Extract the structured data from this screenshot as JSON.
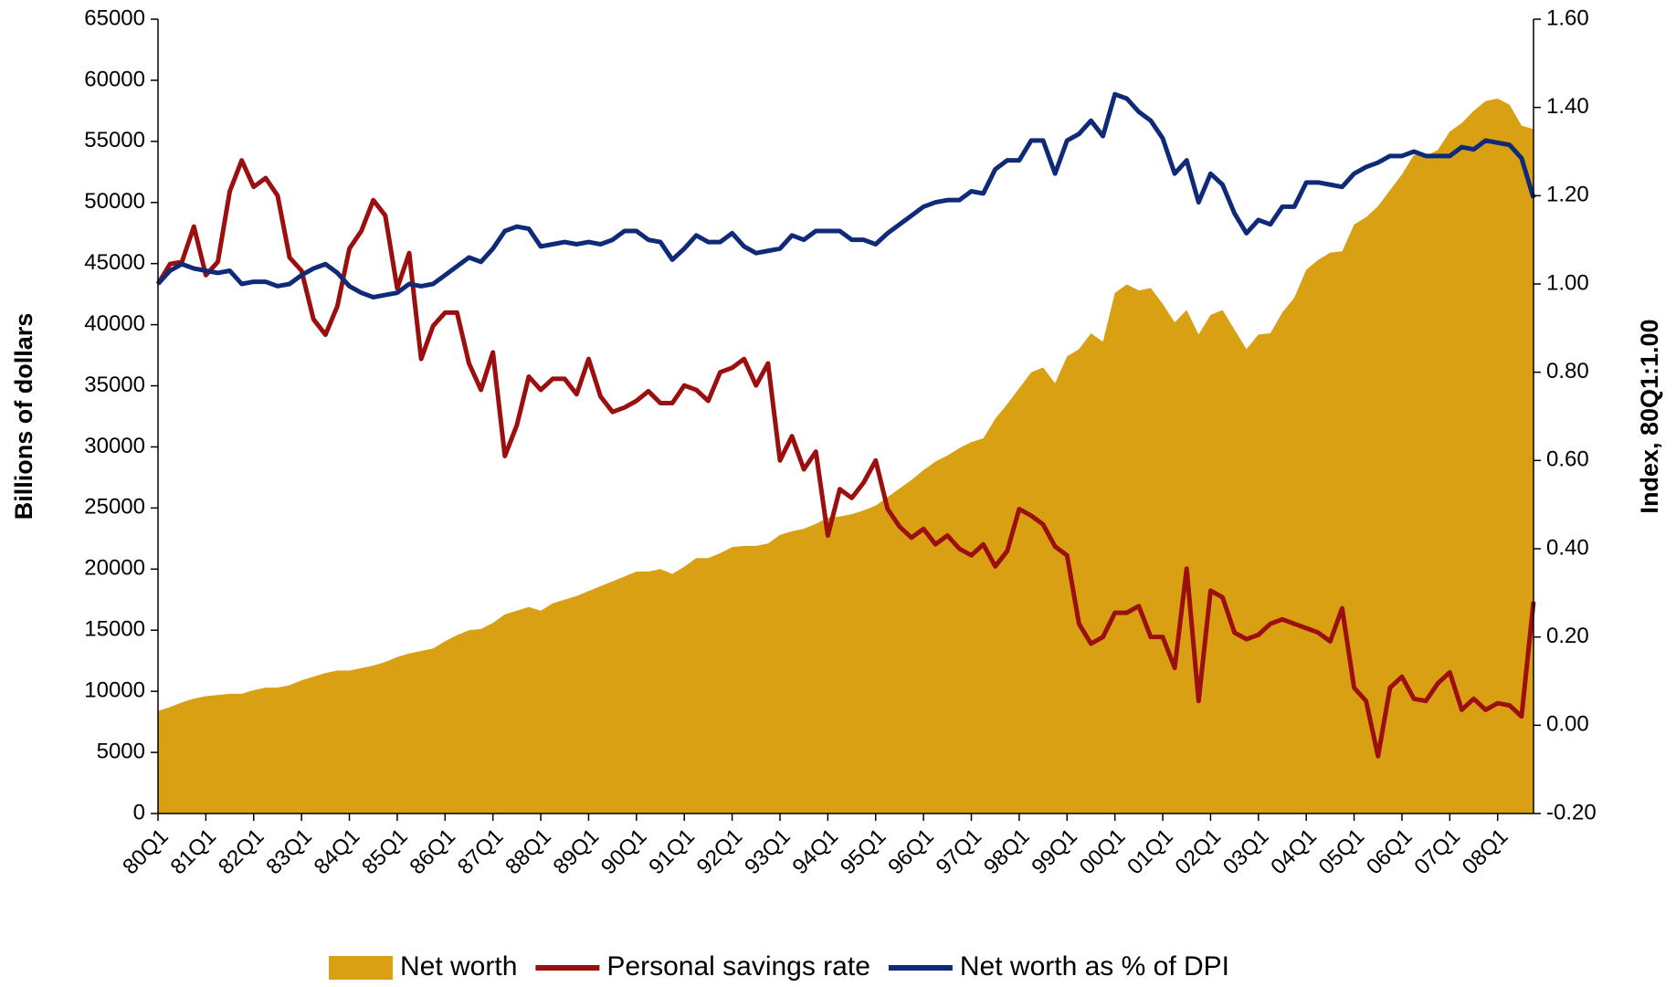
{
  "chart_data": {
    "type": "combo",
    "y_label": "Billions of dollars",
    "y2_label": "Index, 80Q1:1.00",
    "categories": [
      "80Q1",
      null,
      null,
      null,
      "81Q1",
      null,
      null,
      null,
      "82Q1",
      null,
      null,
      null,
      "83Q1",
      null,
      null,
      null,
      "84Q1",
      null,
      null,
      null,
      "85Q1",
      null,
      null,
      null,
      "86Q1",
      null,
      null,
      null,
      "87Q1",
      null,
      null,
      null,
      "88Q1",
      null,
      null,
      null,
      "89Q1",
      null,
      null,
      null,
      "90Q1",
      null,
      null,
      null,
      "91Q1",
      null,
      null,
      null,
      "92Q1",
      null,
      null,
      null,
      "93Q1",
      null,
      null,
      null,
      "94Q1",
      null,
      null,
      null,
      "95Q1",
      null,
      null,
      null,
      "96Q1",
      null,
      null,
      null,
      "97Q1",
      null,
      null,
      null,
      "98Q1",
      null,
      null,
      null,
      "99Q1",
      null,
      null,
      null,
      "00Q1",
      null,
      null,
      null,
      "01Q1",
      null,
      null,
      null,
      "02Q1",
      null,
      null,
      null,
      "03Q1",
      null,
      null,
      null,
      "04Q1",
      null,
      null,
      null,
      "05Q1",
      null,
      null,
      null,
      "06Q1",
      null,
      null,
      null,
      "07Q1",
      null,
      null,
      null,
      "08Q1",
      null,
      null,
      null
    ],
    "series": [
      {
        "name": "Net worth",
        "type": "area",
        "color": "#daa014",
        "values": [
          8400,
          8700,
          9100,
          9400,
          9600,
          9700,
          9800,
          9800,
          10100,
          10300,
          10300,
          10500,
          10900,
          11200,
          11500,
          11700,
          11700,
          11900,
          12100,
          12400,
          12800,
          13100,
          13300,
          13500,
          14100,
          14600,
          15000,
          15100,
          15600,
          16300,
          16600,
          16900,
          16600,
          17200,
          17500,
          17800,
          18200,
          18600,
          19000,
          19400,
          19800,
          19800,
          20000,
          19600,
          20200,
          20900,
          20900,
          21300,
          21800,
          21900,
          21900,
          22100,
          22800,
          23100,
          23300,
          23700,
          24200,
          24300,
          24500,
          24800,
          25200,
          25900,
          26600,
          27300,
          28100,
          28800,
          29300,
          29900,
          30400,
          30700,
          32300,
          33500,
          34800,
          36100,
          36500,
          35200,
          37400,
          38000,
          39300,
          38600,
          42600,
          43300,
          42800,
          43000,
          41700,
          40200,
          41200,
          39200,
          40800,
          41200,
          39600,
          38000,
          39200,
          39300,
          41000,
          42200,
          44500,
          45300,
          45900,
          46000,
          48200,
          48800,
          49700,
          51000,
          52300,
          53900,
          53800,
          54300,
          55800,
          56500,
          57500,
          58300,
          58500,
          58000,
          56300,
          56000
        ]
      },
      {
        "name": "Personal savings rate",
        "type": "line",
        "axis": "y2",
        "color": "#9c0f0f",
        "values": [
          1.0,
          1.045,
          1.05,
          1.13,
          1.02,
          1.05,
          1.21,
          1.28,
          1.22,
          1.24,
          1.2,
          1.06,
          1.03,
          0.92,
          0.885,
          0.95,
          1.08,
          1.12,
          1.19,
          1.155,
          0.99,
          1.07,
          0.83,
          0.905,
          0.935,
          0.935,
          0.82,
          0.76,
          0.845,
          0.61,
          0.68,
          0.79,
          0.76,
          0.785,
          0.785,
          0.75,
          0.83,
          0.745,
          0.71,
          0.72,
          0.735,
          0.757,
          0.73,
          0.73,
          0.77,
          0.76,
          0.735,
          0.8,
          0.81,
          0.83,
          0.77,
          0.82,
          0.6,
          0.655,
          0.58,
          0.62,
          0.43,
          0.535,
          0.515,
          0.55,
          0.6,
          0.49,
          0.45,
          0.425,
          0.445,
          0.41,
          0.43,
          0.4,
          0.385,
          0.41,
          0.36,
          0.395,
          0.49,
          0.475,
          0.455,
          0.405,
          0.385,
          0.23,
          0.185,
          0.2,
          0.255,
          0.255,
          0.27,
          0.2,
          0.2,
          0.13,
          0.355,
          0.055,
          0.305,
          0.29,
          0.21,
          0.195,
          0.205,
          0.23,
          0.24,
          0.23,
          0.22,
          0.21,
          0.19,
          0.265,
          0.085,
          0.055,
          -0.07,
          0.085,
          0.11,
          0.06,
          0.055,
          0.095,
          0.12,
          0.035,
          0.06,
          0.035,
          0.05,
          0.045,
          0.02,
          0.28
        ]
      },
      {
        "name": "Net worth as % of DPI",
        "type": "line",
        "axis": "y2",
        "color": "#0f2a78",
        "values": [
          1.0,
          1.03,
          1.045,
          1.035,
          1.03,
          1.025,
          1.03,
          1.0,
          1.005,
          1.005,
          0.995,
          1.0,
          1.02,
          1.035,
          1.045,
          1.025,
          0.995,
          0.98,
          0.97,
          0.975,
          0.98,
          1.0,
          0.995,
          1.0,
          1.02,
          1.04,
          1.06,
          1.05,
          1.08,
          1.12,
          1.13,
          1.125,
          1.085,
          1.09,
          1.095,
          1.09,
          1.095,
          1.09,
          1.1,
          1.12,
          1.12,
          1.1,
          1.095,
          1.055,
          1.08,
          1.11,
          1.095,
          1.095,
          1.115,
          1.085,
          1.07,
          1.075,
          1.08,
          1.11,
          1.1,
          1.12,
          1.12,
          1.12,
          1.1,
          1.1,
          1.09,
          1.115,
          1.135,
          1.155,
          1.175,
          1.185,
          1.19,
          1.19,
          1.21,
          1.205,
          1.26,
          1.28,
          1.28,
          1.325,
          1.325,
          1.25,
          1.325,
          1.34,
          1.37,
          1.335,
          1.43,
          1.42,
          1.39,
          1.37,
          1.33,
          1.25,
          1.28,
          1.185,
          1.25,
          1.225,
          1.16,
          1.115,
          1.145,
          1.135,
          1.175,
          1.175,
          1.23,
          1.23,
          1.225,
          1.22,
          1.25,
          1.265,
          1.275,
          1.29,
          1.29,
          1.3,
          1.29,
          1.29,
          1.29,
          1.31,
          1.305,
          1.325,
          1.32,
          1.315,
          1.285,
          1.195
        ]
      }
    ],
    "ylim": [
      0,
      65000
    ],
    "yticks": [
      0,
      5000,
      10000,
      15000,
      20000,
      25000,
      30000,
      35000,
      40000,
      45000,
      50000,
      55000,
      60000,
      65000
    ],
    "y2lim": [
      -0.2,
      1.6
    ],
    "y2ticks": [
      {
        "value": -0.2,
        "label": "-0.20"
      },
      {
        "value": 0,
        "label": "0.00"
      },
      {
        "value": 0.2,
        "label": "0.20"
      },
      {
        "value": 0.4,
        "label": "0.40"
      },
      {
        "value": 0.6,
        "label": "0.60"
      },
      {
        "value": 0.8,
        "label": "0.80"
      },
      {
        "value": 1.0,
        "label": "1.00"
      },
      {
        "value": 1.2,
        "label": "1.20"
      },
      {
        "value": 1.4,
        "label": "1.40"
      },
      {
        "value": 1.6,
        "label": "1.60"
      }
    ],
    "grid": false,
    "legend": "bottom"
  }
}
